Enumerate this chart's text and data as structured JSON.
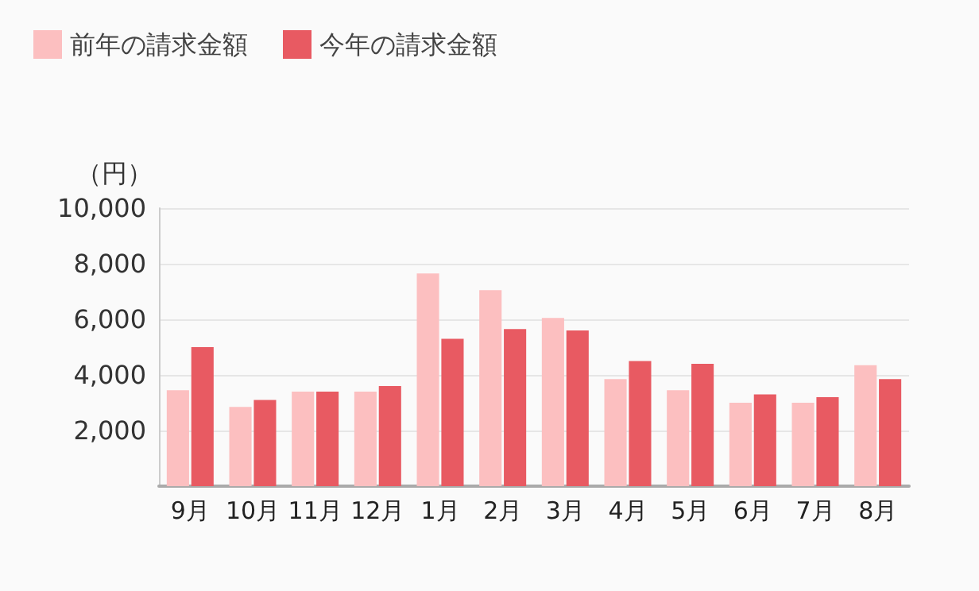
{
  "chart_data": {
    "type": "bar",
    "ylabel": "（円）",
    "categories": [
      "9月",
      "10月",
      "11月",
      "12月",
      "1月",
      "2月",
      "3月",
      "4月",
      "5月",
      "6月",
      "7月",
      "8月"
    ],
    "series": [
      {
        "name": "前年の請求金額",
        "color": "#fcbfc0",
        "values": [
          3450,
          2850,
          3400,
          3400,
          7650,
          7050,
          6050,
          3850,
          3450,
          3000,
          3000,
          4350
        ]
      },
      {
        "name": "今年の請求金額",
        "color": "#e85a62",
        "values": [
          5000,
          3100,
          3400,
          3600,
          5300,
          5650,
          5600,
          4500,
          4400,
          3300,
          3200,
          3850
        ]
      }
    ],
    "ylim": [
      0,
      10000
    ],
    "yticks": [
      {
        "value": 2000,
        "label": "2,000"
      },
      {
        "value": 4000,
        "label": "4,000"
      },
      {
        "value": 6000,
        "label": "6,000"
      },
      {
        "value": 8000,
        "label": "8,000"
      },
      {
        "value": 10000,
        "label": "10,000"
      }
    ],
    "grid": "y",
    "legend": "top left"
  }
}
